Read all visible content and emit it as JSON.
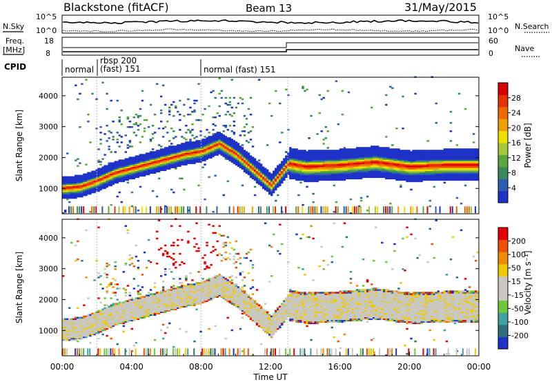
{
  "header": {
    "title": "Blackstone (fitACF)",
    "beam": "Beam 13",
    "date": "31/May/2015"
  },
  "noise_panel": {
    "left_label": "N.Sky",
    "right_label": "N.Search",
    "left_ticks": [
      "10^5",
      "10^0"
    ],
    "right_ticks": [
      "10^5",
      "10^0"
    ]
  },
  "freq_panel": {
    "left_label_1": "Freq.",
    "left_label_2": "[MHz]",
    "right_label": "Nave",
    "left_ticks": [
      "18",
      "8"
    ],
    "right_ticks": [
      "60",
      "0"
    ]
  },
  "cpid": {
    "label": "CPID",
    "segments": [
      {
        "label": "normal",
        "start_hour": 0
      },
      {
        "label": "rbsp 200",
        "label2": "(fast) 151",
        "start_hour": 2
      },
      {
        "label": "normal (fast)  151",
        "start_hour": 8
      }
    ]
  },
  "colors": {
    "power": [
      "#1e32c8",
      "#2f5fb0",
      "#3a8a5a",
      "#5aa83c",
      "#a8c83c",
      "#f0e000",
      "#f0a000",
      "#f06a00",
      "#e63200",
      "#d70000"
    ],
    "velocity": [
      "#1e32c8",
      "#2d6f7a",
      "#41a0a0",
      "#6ec83c",
      "#c8c8c0",
      "#c8c8c0",
      "#f0c800",
      "#f08c00",
      "#f05000",
      "#e60000"
    ]
  },
  "power_colorbar": {
    "label": "Power [dB]",
    "ticks": [
      "28",
      "24",
      "20",
      "16",
      "12",
      "8",
      "4"
    ]
  },
  "velocity_colorbar": {
    "label": "Velocity [m s⁻¹]",
    "ticks": [
      "200",
      "100",
      "50",
      "15",
      "-15",
      "-50",
      "-100",
      "-200"
    ]
  },
  "x_axis": {
    "label": "Time UT",
    "ticks": [
      "00:00",
      "04:00",
      "08:00",
      "12:00",
      "16:00",
      "20:00",
      "00:00"
    ]
  },
  "chart_data": [
    {
      "type": "heatmap",
      "title": "Power",
      "ylabel": "Slant Range [km]",
      "xlabel": "Time UT",
      "ylim": [
        180,
        4600
      ],
      "y_ticks": [
        1000,
        2000,
        3000,
        4000
      ],
      "x_range_hours": [
        0,
        24
      ],
      "band_center_km": {
        "hours": [
          0,
          1,
          2,
          3,
          4,
          5,
          6,
          7,
          8,
          9,
          10,
          11,
          12,
          13,
          14,
          16,
          18,
          20,
          22,
          24
        ],
        "range": [
          1000,
          1050,
          1250,
          1500,
          1650,
          1800,
          1950,
          2100,
          2200,
          2450,
          2100,
          1600,
          1100,
          1800,
          1700,
          1750,
          1850,
          1700,
          1750,
          1750
        ]
      },
      "colorbar_range_dB": [
        0,
        30
      ]
    },
    {
      "type": "heatmap",
      "title": "Velocity",
      "ylabel": "Slant Range [km]",
      "xlabel": "Time UT",
      "ylim": [
        180,
        4600
      ],
      "y_ticks": [
        1000,
        2000,
        3000,
        4000
      ],
      "x_range_hours": [
        0,
        24
      ],
      "colorbar_range_ms": [
        -200,
        200
      ]
    }
  ]
}
